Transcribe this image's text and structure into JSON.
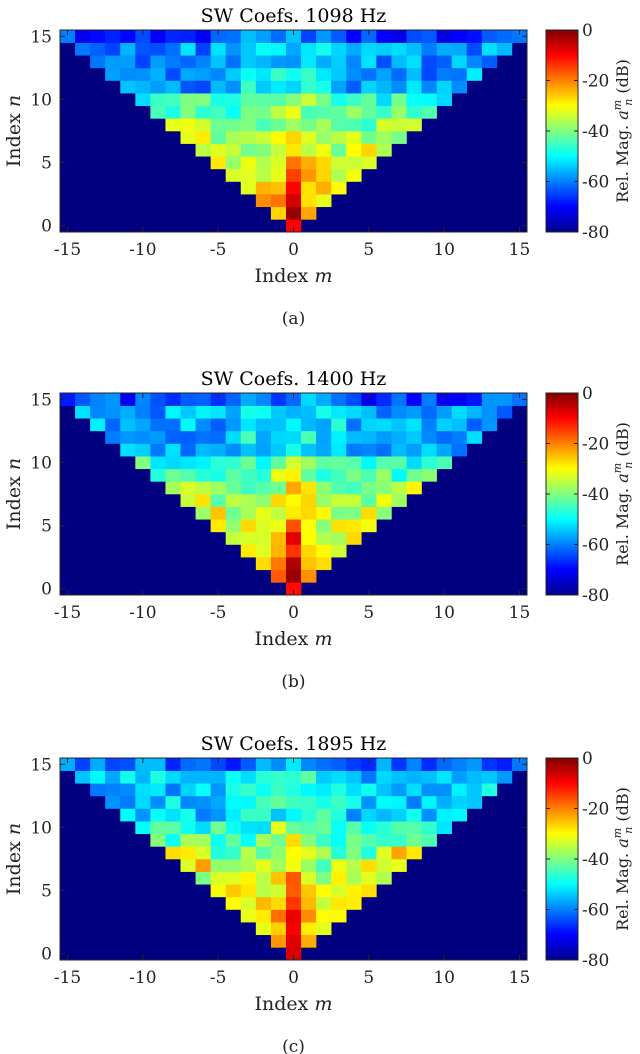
{
  "figure": {
    "panels": [
      {
        "caption": "(a)",
        "title": "SW Coefs. 1098 Hz",
        "freq_hz": 1098
      },
      {
        "caption": "(b)",
        "title": "SW Coefs. 1400 Hz",
        "freq_hz": 1400
      },
      {
        "caption": "(c)",
        "title": "SW Coefs. 1895 Hz",
        "freq_hz": 1895
      }
    ]
  },
  "chart_data": [
    {
      "type": "heatmap",
      "title": "SW Coefs. 1098 Hz",
      "xlabel": "Index m",
      "ylabel": "Index n",
      "colorbar_label": "Rel. Mag. a_n^m (dB)",
      "x_ticks": [
        "-15",
        "-10",
        "-5",
        "0",
        "5",
        "10",
        "15"
      ],
      "y_ticks": [
        "0",
        "5",
        "10",
        "15"
      ],
      "colorbar_ticks": [
        "0",
        "-20",
        "-40",
        "-60",
        "-80"
      ],
      "xlim": [
        -15.5,
        15.5
      ],
      "ylim": [
        -0.5,
        15.5
      ],
      "clim": [
        -80,
        0
      ],
      "colormap": "jet",
      "background_value": -80,
      "center_peak_db": -6,
      "high_order_level_db": -58,
      "lobe_db": -32
    },
    {
      "type": "heatmap",
      "title": "SW Coefs. 1400 Hz",
      "xlabel": "Index m",
      "ylabel": "Index n",
      "colorbar_label": "Rel. Mag. a_n^m (dB)",
      "x_ticks": [
        "-15",
        "-10",
        "-5",
        "0",
        "5",
        "10",
        "15"
      ],
      "y_ticks": [
        "0",
        "5",
        "10",
        "15"
      ],
      "colorbar_ticks": [
        "0",
        "-20",
        "-40",
        "-60",
        "-80"
      ],
      "xlim": [
        -15.5,
        15.5
      ],
      "ylim": [
        -0.5,
        15.5
      ],
      "clim": [
        -80,
        0
      ],
      "colormap": "jet",
      "background_value": -80,
      "center_peak_db": -5,
      "high_order_level_db": -57,
      "lobe_db": -30
    },
    {
      "type": "heatmap",
      "title": "SW Coefs. 1895 Hz",
      "xlabel": "Index m",
      "ylabel": "Index n",
      "colorbar_label": "Rel. Mag. a_n^m (dB)",
      "x_ticks": [
        "-15",
        "-10",
        "-5",
        "0",
        "5",
        "10",
        "15"
      ],
      "y_ticks": [
        "0",
        "5",
        "10",
        "15"
      ],
      "colorbar_ticks": [
        "0",
        "-20",
        "-40",
        "-60",
        "-80"
      ],
      "xlim": [
        -15.5,
        15.5
      ],
      "ylim": [
        -0.5,
        15.5
      ],
      "clim": [
        -80,
        0
      ],
      "colormap": "jet",
      "background_value": -80,
      "center_peak_db": -4,
      "high_order_level_db": -54,
      "lobe_db": -27
    }
  ]
}
